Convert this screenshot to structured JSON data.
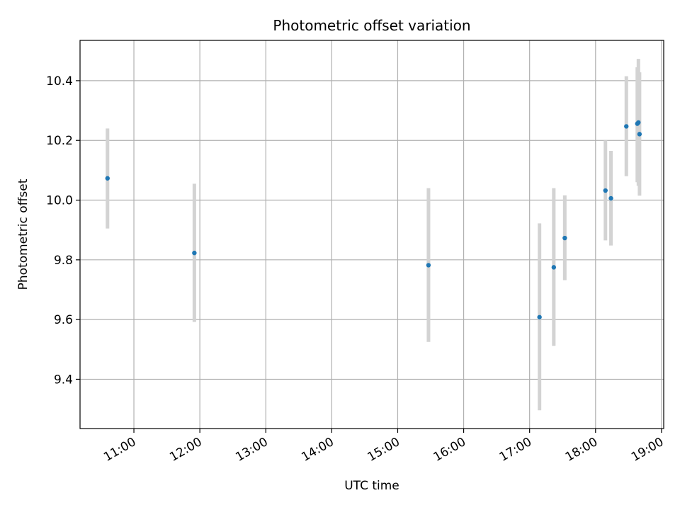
{
  "chart_data": {
    "type": "scatter",
    "title": "Photometric offset variation",
    "xlabel": "UTC time",
    "ylabel": "Photometric offset",
    "x_ticks": [
      "11:00",
      "12:00",
      "13:00",
      "14:00",
      "15:00",
      "16:00",
      "17:00",
      "18:00",
      "19:00"
    ],
    "y_ticks": [
      "9.4",
      "9.6",
      "9.8",
      "10.0",
      "10.2",
      "10.4"
    ],
    "xlim": [
      "10:11",
      "19:02"
    ],
    "ylim": [
      9.235,
      10.535
    ],
    "grid": true,
    "colors": {
      "point": "#1f77b4",
      "errorbar": "#d3d3d3",
      "grid": "#b0b0b0"
    },
    "points": [
      {
        "x": "10:36",
        "y": 10.073,
        "ylow": 9.905,
        "yhigh": 10.24
      },
      {
        "x": "11:55",
        "y": 9.823,
        "ylow": 9.592,
        "yhigh": 10.055
      },
      {
        "x": "15:28",
        "y": 9.782,
        "ylow": 9.525,
        "yhigh": 10.04
      },
      {
        "x": "17:09",
        "y": 9.608,
        "ylow": 9.296,
        "yhigh": 9.922
      },
      {
        "x": "17:22",
        "y": 9.775,
        "ylow": 9.512,
        "yhigh": 10.04
      },
      {
        "x": "17:32",
        "y": 9.873,
        "ylow": 9.732,
        "yhigh": 10.016
      },
      {
        "x": "18:09",
        "y": 10.032,
        "ylow": 9.865,
        "yhigh": 10.2
      },
      {
        "x": "18:14",
        "y": 10.006,
        "ylow": 9.848,
        "yhigh": 10.165
      },
      {
        "x": "18:28",
        "y": 10.247,
        "ylow": 10.08,
        "yhigh": 10.415
      },
      {
        "x": "18:38",
        "y": 10.256,
        "ylow": 10.06,
        "yhigh": 10.445
      },
      {
        "x": "18:39",
        "y": 10.26,
        "ylow": 10.048,
        "yhigh": 10.473
      },
      {
        "x": "18:40",
        "y": 10.221,
        "ylow": 10.015,
        "yhigh": 10.428
      }
    ]
  }
}
